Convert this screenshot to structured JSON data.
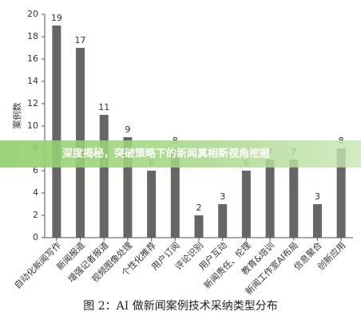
{
  "chart_data": {
    "type": "bar",
    "ylabel": "案例数",
    "categories": [
      "自动化新闻写作",
      "新闻报道",
      "增强记者报道",
      "视频图像处理",
      "个性化推荐",
      "用户订阅",
      "评论识别",
      "用户互动",
      "新闻责任、伦理",
      "教育&培训",
      "新闻工作室AI布局",
      "信息聚合",
      "创新应用"
    ],
    "values": [
      19,
      17,
      11,
      9,
      6,
      8,
      2,
      3,
      6,
      7,
      7,
      3,
      8
    ],
    "color": "#666666",
    "ylim": [
      0,
      20
    ],
    "yticks": [
      0,
      2,
      4,
      6,
      8,
      10,
      12,
      14,
      16,
      18,
      20
    ]
  },
  "caption": "图 2：AI 做新闻案例技术采纳类型分布",
  "banner": "深度揭秘，突破策略下的新闻真相新视角挖掘"
}
